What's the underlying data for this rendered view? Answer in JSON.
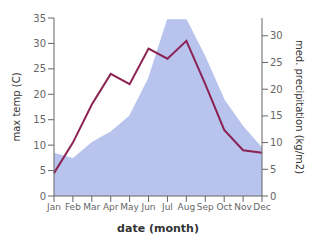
{
  "chart_data": {
    "type": "line",
    "categories": [
      "Jan",
      "Feb",
      "Mar",
      "Apr",
      "May",
      "Jun",
      "Jul",
      "Aug",
      "Sep",
      "Oct",
      "Nov",
      "Dec"
    ],
    "series": [
      {
        "type": "area",
        "color": "#b8c4ee",
        "axis": "y2",
        "values": [
          8,
          7,
          10,
          12,
          15,
          22,
          33,
          33,
          26,
          18,
          13,
          9
        ]
      },
      {
        "type": "line",
        "color": "#8B2252",
        "values": [
          4.5,
          10.5,
          18.0,
          24.0,
          22.0,
          29.0,
          27.0,
          30.5,
          22.0,
          13.0,
          9.0,
          8.5
        ]
      }
    ],
    "xlabel": "date (month)",
    "ylabel": "max temp (C)",
    "y2label": "med. precipitation (kg/m2)",
    "ylim": [
      0,
      35
    ],
    "yticks": [
      0,
      5,
      10,
      15,
      20,
      25,
      30,
      35
    ],
    "y2lim": [
      0,
      33.33
    ],
    "y2ticks": [
      0,
      5,
      10,
      15,
      20,
      25,
      30
    ],
    "grid": false
  }
}
